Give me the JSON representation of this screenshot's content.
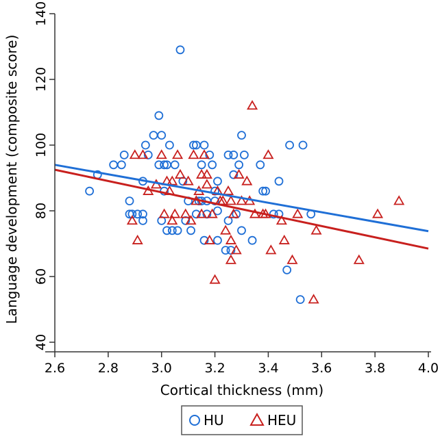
{
  "chart_data": {
    "type": "scatter",
    "title": "",
    "xlabel": "Cortical thickness (mm)",
    "ylabel": "Language development (composite score)",
    "xlim": [
      2.6,
      4.0
    ],
    "ylim": [
      40,
      140
    ],
    "xticks": [
      "2.6",
      "2.8",
      "3.0",
      "3.2",
      "3.4",
      "3.6",
      "3.8",
      "4.0"
    ],
    "yticks": [
      "40",
      "60",
      "80",
      "100",
      "120",
      "140"
    ],
    "grid": false,
    "legend_position": "bottom-center",
    "series": [
      {
        "name": "HU",
        "marker": "circle",
        "color": "#1f6fd6",
        "points": [
          [
            2.73,
            86
          ],
          [
            2.76,
            91
          ],
          [
            2.82,
            94
          ],
          [
            2.85,
            94
          ],
          [
            2.86,
            97
          ],
          [
            2.88,
            83
          ],
          [
            2.88,
            79
          ],
          [
            2.89,
            79
          ],
          [
            2.91,
            79
          ],
          [
            2.93,
            79
          ],
          [
            2.93,
            77
          ],
          [
            2.93,
            89
          ],
          [
            2.94,
            100
          ],
          [
            2.95,
            97
          ],
          [
            2.97,
            103
          ],
          [
            2.99,
            94
          ],
          [
            2.99,
            109
          ],
          [
            3.0,
            103
          ],
          [
            3.0,
            77
          ],
          [
            3.01,
            86
          ],
          [
            3.01,
            94
          ],
          [
            3.02,
            94
          ],
          [
            3.02,
            74
          ],
          [
            3.03,
            100
          ],
          [
            3.04,
            74
          ],
          [
            3.05,
            94
          ],
          [
            3.06,
            74
          ],
          [
            3.07,
            129
          ],
          [
            3.08,
            89
          ],
          [
            3.09,
            77
          ],
          [
            3.11,
            74
          ],
          [
            3.12,
            100
          ],
          [
            3.13,
            100
          ],
          [
            3.13,
            79
          ],
          [
            3.14,
            83
          ],
          [
            3.15,
            94
          ],
          [
            3.15,
            83
          ],
          [
            3.16,
            71
          ],
          [
            3.16,
            100
          ],
          [
            3.17,
            83
          ],
          [
            3.17,
            79
          ],
          [
            3.18,
            97
          ],
          [
            3.19,
            94
          ],
          [
            3.2,
            86
          ],
          [
            3.2,
            83
          ],
          [
            3.21,
            71
          ],
          [
            3.21,
            89
          ],
          [
            3.24,
            68
          ],
          [
            3.25,
            77
          ],
          [
            3.25,
            97
          ],
          [
            3.26,
            68
          ],
          [
            3.27,
            97
          ],
          [
            3.27,
            91
          ],
          [
            3.28,
            79
          ],
          [
            3.29,
            94
          ],
          [
            3.3,
            74
          ],
          [
            3.3,
            103
          ],
          [
            3.31,
            97
          ],
          [
            3.34,
            71
          ],
          [
            3.37,
            94
          ],
          [
            3.38,
            86
          ],
          [
            3.39,
            86
          ],
          [
            3.42,
            79
          ],
          [
            3.44,
            89
          ],
          [
            3.44,
            79
          ],
          [
            3.47,
            62
          ],
          [
            3.48,
            100
          ],
          [
            3.52,
            53
          ],
          [
            3.53,
            100
          ],
          [
            3.56,
            79
          ],
          [
            3.21,
            80
          ],
          [
            3.1,
            83
          ]
        ]
      },
      {
        "name": "HEU",
        "marker": "triangle",
        "color": "#c8201e",
        "points": [
          [
            2.89,
            77
          ],
          [
            2.9,
            97
          ],
          [
            2.91,
            71
          ],
          [
            2.93,
            97
          ],
          [
            2.95,
            86
          ],
          [
            2.98,
            88
          ],
          [
            3.0,
            97
          ],
          [
            3.01,
            79
          ],
          [
            3.02,
            89
          ],
          [
            3.03,
            86
          ],
          [
            3.04,
            89
          ],
          [
            3.04,
            77
          ],
          [
            3.05,
            79
          ],
          [
            3.06,
            97
          ],
          [
            3.07,
            91
          ],
          [
            3.09,
            79
          ],
          [
            3.1,
            89
          ],
          [
            3.11,
            77
          ],
          [
            3.12,
            97
          ],
          [
            3.13,
            83
          ],
          [
            3.14,
            86
          ],
          [
            3.15,
            91
          ],
          [
            3.15,
            79
          ],
          [
            3.16,
            97
          ],
          [
            3.17,
            88
          ],
          [
            3.17,
            91
          ],
          [
            3.18,
            71
          ],
          [
            3.19,
            79
          ],
          [
            3.2,
            59
          ],
          [
            3.21,
            86
          ],
          [
            3.22,
            83
          ],
          [
            3.23,
            83
          ],
          [
            3.24,
            74
          ],
          [
            3.25,
            86
          ],
          [
            3.26,
            65
          ],
          [
            3.26,
            71
          ],
          [
            3.26,
            83
          ],
          [
            3.27,
            79
          ],
          [
            3.28,
            68
          ],
          [
            3.29,
            91
          ],
          [
            3.3,
            83
          ],
          [
            3.32,
            89
          ],
          [
            3.33,
            83
          ],
          [
            3.34,
            112
          ],
          [
            3.35,
            79
          ],
          [
            3.38,
            79
          ],
          [
            3.39,
            79
          ],
          [
            3.4,
            97
          ],
          [
            3.41,
            68
          ],
          [
            3.45,
            77
          ],
          [
            3.46,
            71
          ],
          [
            3.49,
            65
          ],
          [
            3.51,
            79
          ],
          [
            3.57,
            53
          ],
          [
            3.58,
            74
          ],
          [
            3.74,
            65
          ],
          [
            3.81,
            79
          ],
          [
            3.89,
            83
          ]
        ]
      }
    ],
    "fit_lines": [
      {
        "series": "HU",
        "x": [
          2.6,
          4.0
        ],
        "y": [
          94.0,
          73.8
        ]
      },
      {
        "series": "HEU",
        "x": [
          2.6,
          4.0
        ],
        "y": [
          92.5,
          68.5
        ]
      }
    ]
  }
}
